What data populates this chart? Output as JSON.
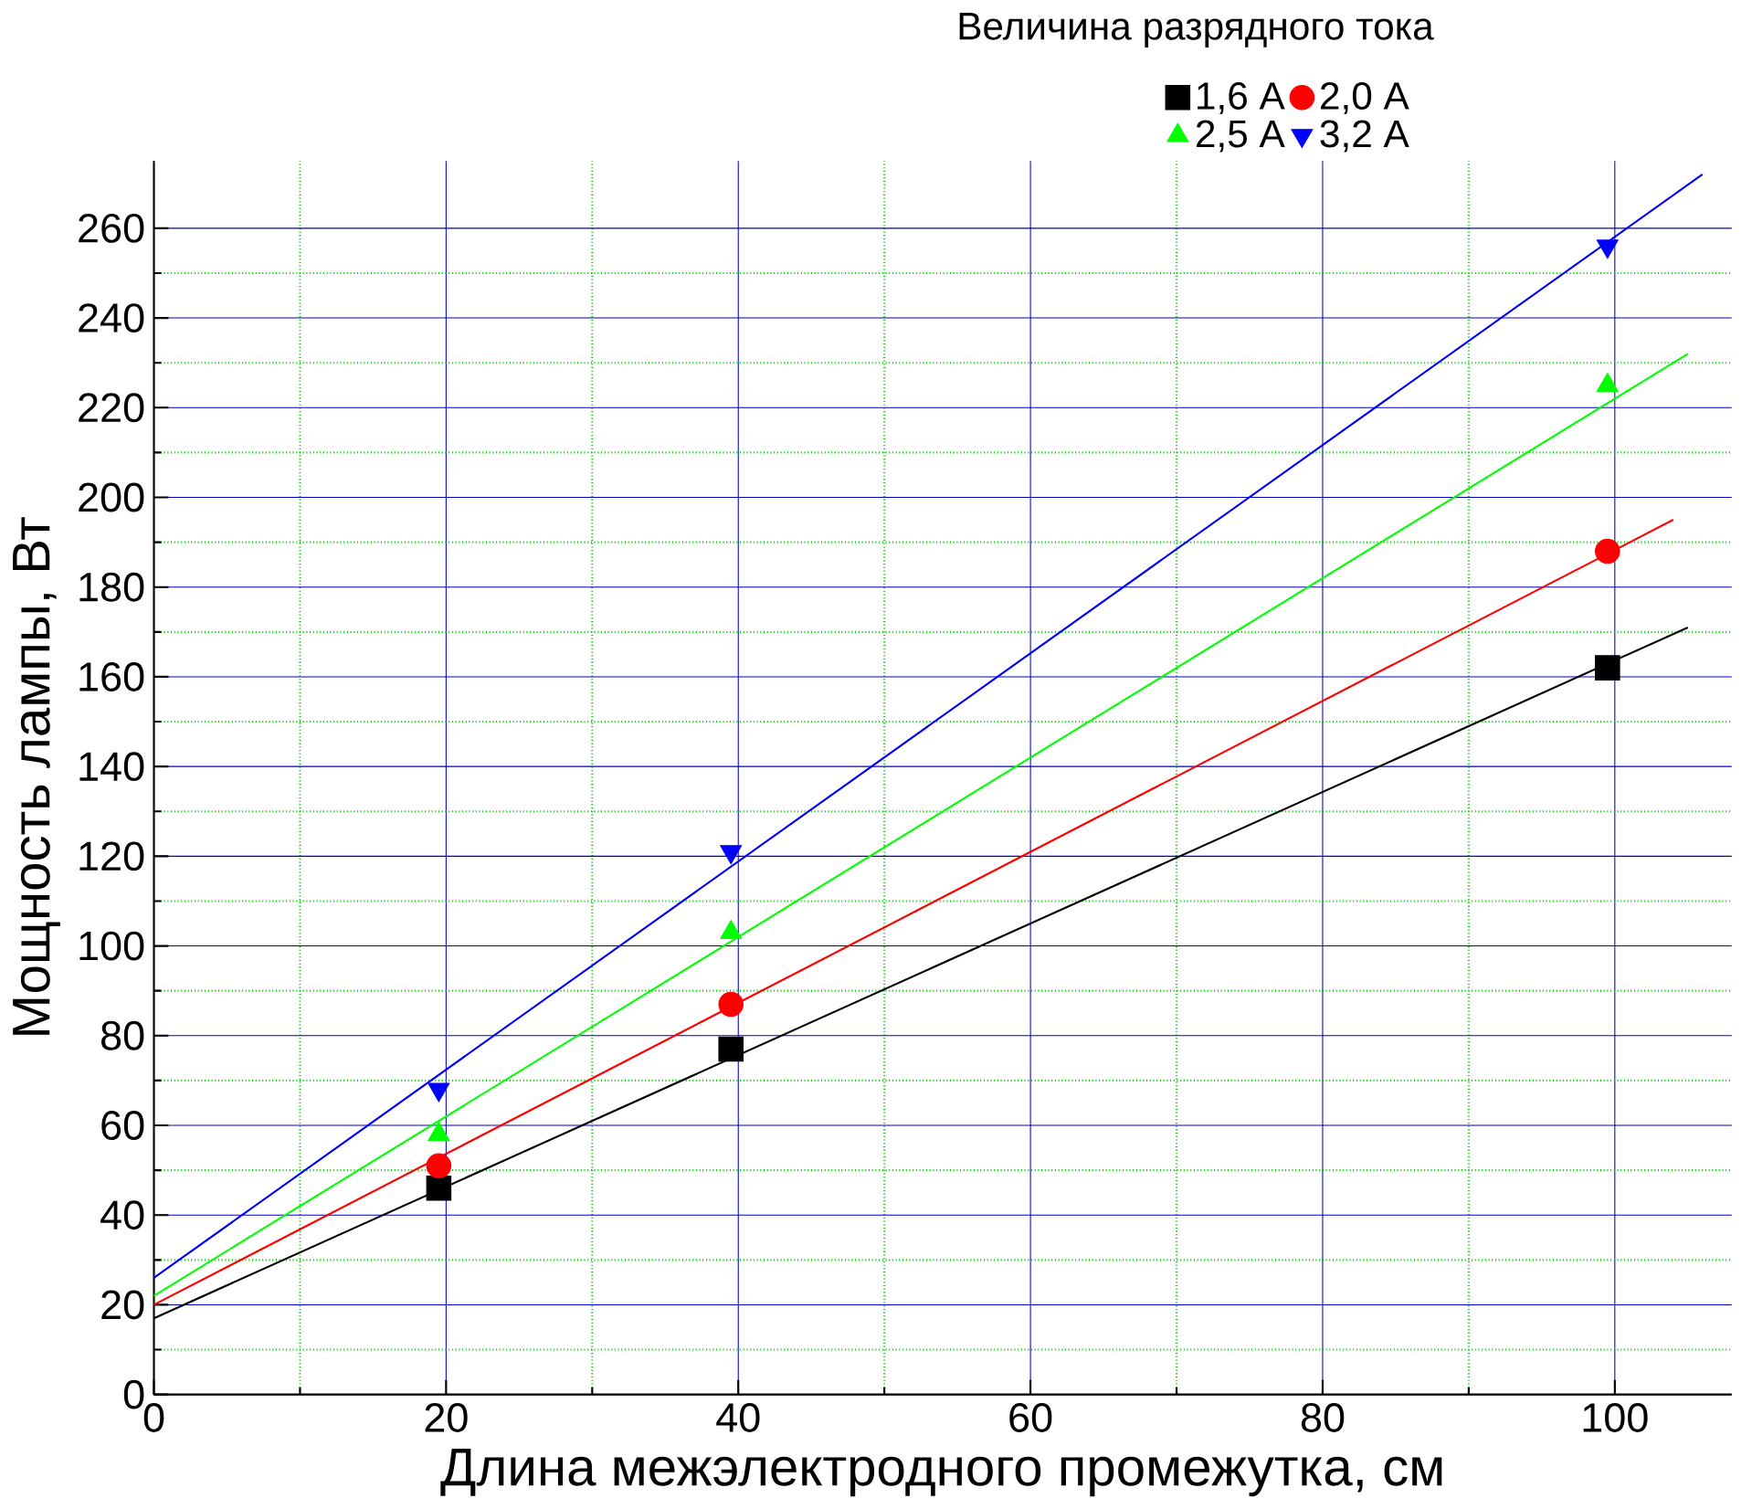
{
  "chart_data": {
    "type": "scatter",
    "xlabel": "Длина межэлектродного промежутка, см",
    "ylabel": "Мощность лампы, Вт",
    "legend_title": "Величина разрядного тока",
    "xlim": [
      0,
      108
    ],
    "xticks": [
      0,
      20,
      40,
      60,
      80,
      100
    ],
    "ylim": [
      0,
      275
    ],
    "yticks": [
      0,
      20,
      40,
      60,
      80,
      100,
      120,
      140,
      160,
      180,
      200,
      220,
      240,
      260
    ],
    "grid": true,
    "legend": "top",
    "series": [
      {
        "name": "1,6 A",
        "color": "#000000",
        "marker": "square",
        "x": [
          19.5,
          39.5,
          99.5
        ],
        "values": [
          46,
          77,
          162
        ]
      },
      {
        "name": "2,0 A",
        "color": "#ff0000",
        "marker": "circle",
        "x": [
          19.5,
          39.5,
          99.5
        ],
        "values": [
          51,
          87,
          188
        ]
      },
      {
        "name": "2,5 A",
        "color": "#00ff00",
        "marker": "triangle",
        "x": [
          19.5,
          39.5,
          99.5
        ],
        "values": [
          58,
          103,
          225
        ]
      },
      {
        "name": "3,2 A",
        "color": "#0000ff",
        "marker": "triangle down",
        "x": [
          19.5,
          39.5,
          99.5
        ],
        "values": [
          68,
          121,
          256
        ]
      },
      {
        "type": "line",
        "color": "#000000",
        "marker": "none",
        "x": [
          0,
          105
        ],
        "values": [
          17,
          171
        ]
      },
      {
        "type": "line",
        "color": "#ff0000",
        "marker": "none",
        "x": [
          0,
          104
        ],
        "values": [
          20,
          195
        ]
      },
      {
        "type": "line",
        "color": "#00ff00",
        "marker": "none",
        "x": [
          0,
          105
        ],
        "values": [
          22,
          232
        ]
      },
      {
        "type": "line",
        "color": "#0000ff",
        "marker": "none",
        "x": [
          0,
          106
        ],
        "values": [
          26,
          272
        ]
      }
    ]
  }
}
